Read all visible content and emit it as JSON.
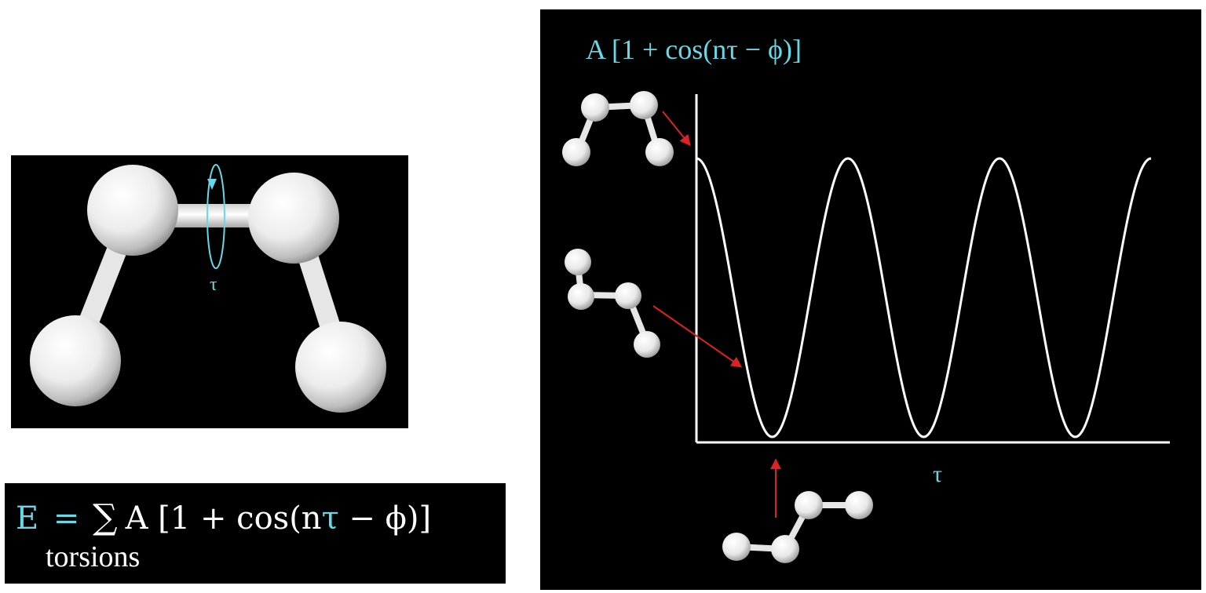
{
  "molecule": {
    "torsion_label": "τ"
  },
  "equation": {
    "lhs": "E",
    "equals": "=",
    "sum_symbol": "∑",
    "rhs_prefix": "A [1 + cos(n",
    "rhs_tau": "τ",
    "rhs_suffix": " − ϕ)]",
    "subscript": "torsions"
  },
  "plot": {
    "title": "A [1 + cos(nτ − ϕ)]",
    "x_axis_label": "τ"
  },
  "chart_data": {
    "type": "line",
    "title": "A [1 + cos(nτ − ϕ)]",
    "xlabel": "τ",
    "ylabel": "",
    "curve": "1 + cos(3τ)",
    "n": 3,
    "x_range": [
      0,
      360
    ],
    "y_range": [
      0,
      2
    ],
    "series": [
      {
        "x": [
          0,
          60,
          120,
          180,
          240,
          300,
          360
        ],
        "values": [
          2,
          0,
          2,
          0,
          2,
          0,
          2
        ]
      }
    ],
    "annotations": [
      "eclipsed conformer at maximum",
      "gauche conformer on descending slope",
      "staggered conformer at minimum"
    ],
    "grid": false,
    "legend": "none"
  },
  "colors": {
    "background": "#000000",
    "accent": "#66d9e8",
    "arrow": "#dd2222",
    "curve": "#ffffff"
  }
}
